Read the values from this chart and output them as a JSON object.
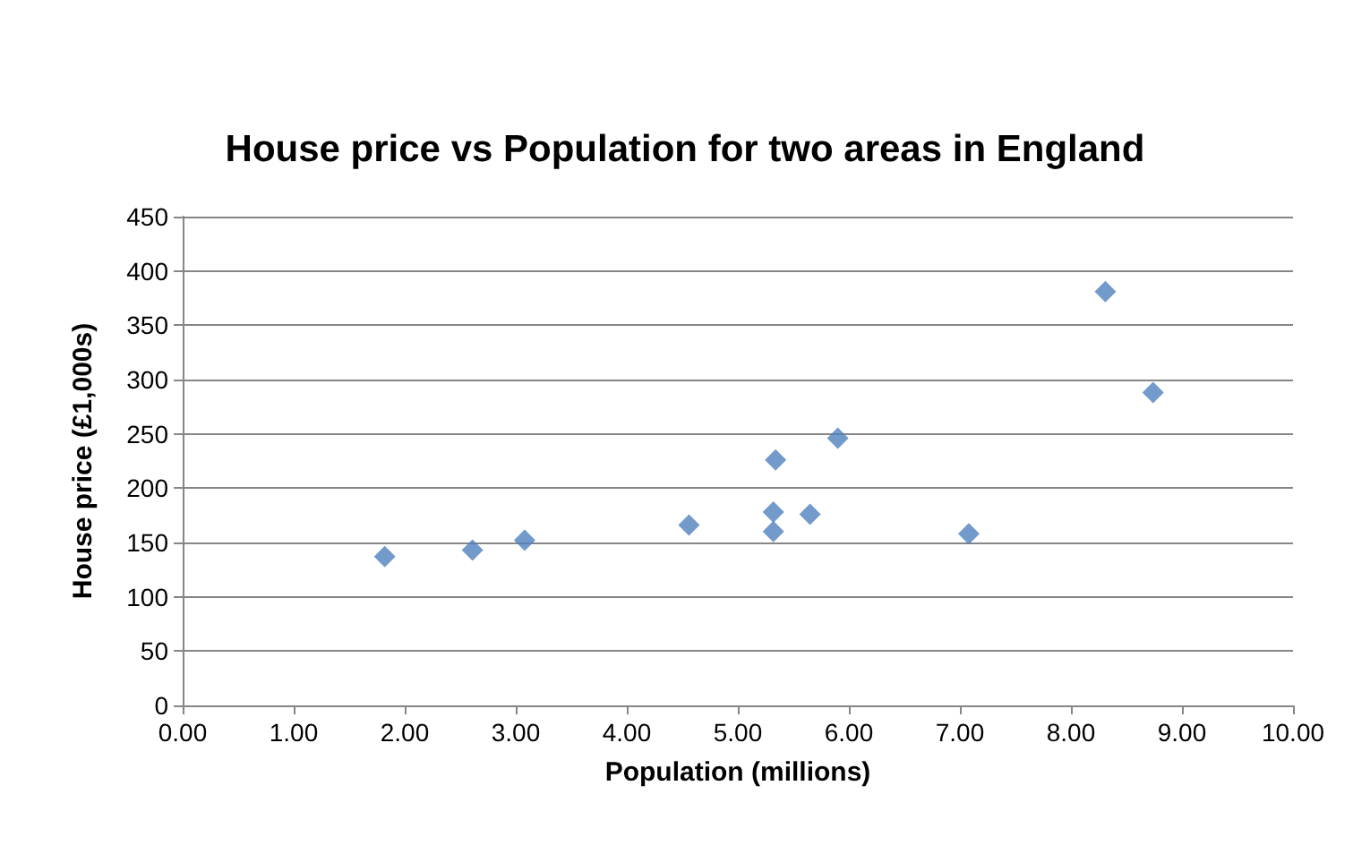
{
  "chart_data": {
    "type": "scatter",
    "title": "House price vs Population for two areas in England",
    "xlabel": "Population (millions)",
    "ylabel": "House price (£1,000s)",
    "x": [
      1.82,
      2.61,
      3.08,
      4.56,
      5.34,
      5.32,
      5.32,
      5.65,
      5.9,
      7.08,
      8.31,
      8.74
    ],
    "series": [
      {
        "color": "#4f81bd",
        "values": [
          137,
          143,
          152,
          166,
          226,
          178,
          160,
          176,
          246,
          158,
          381,
          288
        ]
      }
    ],
    "xlim": [
      0,
      10
    ],
    "xticks": [
      {
        "value": 0,
        "label": "0.00"
      },
      {
        "value": 1,
        "label": "1.00"
      },
      {
        "value": 2,
        "label": "2.00"
      },
      {
        "value": 3,
        "label": "3.00"
      },
      {
        "value": 4,
        "label": "4.00"
      },
      {
        "value": 5,
        "label": "5.00"
      },
      {
        "value": 6,
        "label": "6.00"
      },
      {
        "value": 7,
        "label": "7.00"
      },
      {
        "value": 8,
        "label": "8.00"
      },
      {
        "value": 9,
        "label": "9.00"
      },
      {
        "value": 10,
        "label": "10.00"
      }
    ],
    "ylim": [
      0,
      450
    ],
    "yticks": [
      0,
      50,
      100,
      150,
      200,
      250,
      300,
      350,
      400,
      450
    ],
    "grid": "y",
    "marker": "diamond"
  }
}
